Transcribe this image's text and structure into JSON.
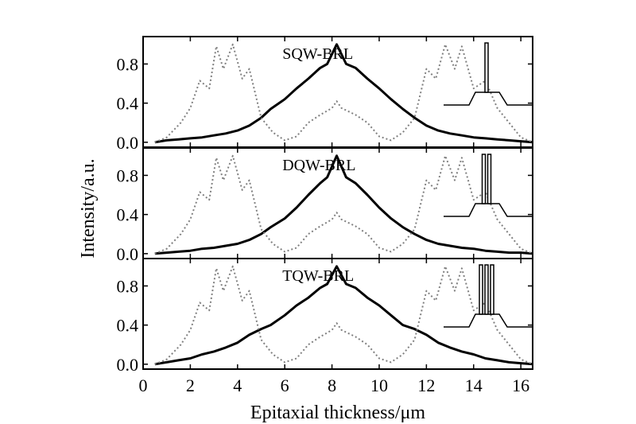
{
  "chart_data": {
    "type": "line",
    "xlabel": "Epitaxial thickness/μm",
    "ylabel": "Intensity/a.u.",
    "xlim": [
      0,
      16.5
    ],
    "ylim": [
      -0.05,
      1.08
    ],
    "x_ticks": [
      "0",
      "2",
      "4",
      "6",
      "8",
      "10",
      "12",
      "14",
      "16"
    ],
    "y_ticks": [
      "0.0",
      "0.4",
      "0.8"
    ],
    "colors": {
      "solid": "#000000",
      "dotted": "#808080",
      "frame": "#000000"
    },
    "panels": [
      {
        "label": "SQW-BRL",
        "wells": 1,
        "series": [
          {
            "style": "solid",
            "x": [
              0.5,
              1.0,
              1.5,
              2.0,
              2.5,
              3.0,
              3.5,
              4.0,
              4.5,
              5.0,
              5.4,
              6.0,
              6.5,
              7.0,
              7.5,
              7.8,
              8.2,
              8.6,
              9.0,
              9.5,
              10.0,
              10.5,
              11.0,
              11.5,
              12.0,
              12.5,
              13.0,
              13.5,
              14.0,
              14.5,
              15.0,
              15.5,
              16.0,
              16.5
            ],
            "y": [
              0.0,
              0.02,
              0.03,
              0.04,
              0.05,
              0.07,
              0.09,
              0.12,
              0.17,
              0.25,
              0.34,
              0.44,
              0.55,
              0.65,
              0.76,
              0.8,
              1.0,
              0.8,
              0.76,
              0.65,
              0.55,
              0.44,
              0.34,
              0.25,
              0.17,
              0.12,
              0.09,
              0.07,
              0.05,
              0.04,
              0.03,
              0.02,
              0.01,
              0.0
            ]
          },
          {
            "style": "dotted",
            "x": [
              0.5,
              1.0,
              1.6,
              2.0,
              2.4,
              2.8,
              3.1,
              3.4,
              3.8,
              4.2,
              4.5,
              5.0,
              5.5,
              6.0,
              6.5,
              7.0,
              7.5,
              8.0,
              8.2,
              8.4,
              9.0,
              9.5,
              10.0,
              10.5,
              11.0,
              11.5,
              12.0,
              12.4,
              12.8,
              13.2,
              13.5,
              14.0,
              14.5,
              15.0,
              15.5,
              16.0,
              16.5
            ],
            "y": [
              0.0,
              0.05,
              0.2,
              0.35,
              0.63,
              0.55,
              0.98,
              0.75,
              1.0,
              0.65,
              0.75,
              0.25,
              0.1,
              0.02,
              0.06,
              0.2,
              0.28,
              0.35,
              0.42,
              0.35,
              0.28,
              0.2,
              0.06,
              0.02,
              0.1,
              0.25,
              0.75,
              0.65,
              1.0,
              0.75,
              0.98,
              0.55,
              0.63,
              0.35,
              0.2,
              0.05,
              0.0
            ]
          }
        ]
      },
      {
        "label": "DQW-BRL",
        "wells": 2,
        "series": [
          {
            "style": "solid",
            "x": [
              0.5,
              1.0,
              1.5,
              2.0,
              2.5,
              3.0,
              3.5,
              4.0,
              4.5,
              5.0,
              5.4,
              6.0,
              6.5,
              7.0,
              7.5,
              7.8,
              8.2,
              8.6,
              9.0,
              9.5,
              10.0,
              10.5,
              11.0,
              11.5,
              12.0,
              12.5,
              13.0,
              13.5,
              14.0,
              14.5,
              15.0,
              15.5,
              16.0,
              16.5
            ],
            "y": [
              0.0,
              0.01,
              0.02,
              0.03,
              0.05,
              0.06,
              0.08,
              0.1,
              0.14,
              0.2,
              0.27,
              0.36,
              0.47,
              0.6,
              0.72,
              0.78,
              1.0,
              0.78,
              0.72,
              0.6,
              0.47,
              0.36,
              0.27,
              0.2,
              0.14,
              0.1,
              0.08,
              0.06,
              0.05,
              0.03,
              0.02,
              0.01,
              0.01,
              0.0
            ]
          },
          {
            "style": "dotted",
            "x": [
              0.5,
              1.0,
              1.6,
              2.0,
              2.4,
              2.8,
              3.1,
              3.4,
              3.8,
              4.2,
              4.5,
              5.0,
              5.5,
              6.0,
              6.5,
              7.0,
              7.5,
              8.0,
              8.2,
              8.4,
              9.0,
              9.5,
              10.0,
              10.5,
              11.0,
              11.5,
              12.0,
              12.4,
              12.8,
              13.2,
              13.5,
              14.0,
              14.5,
              15.0,
              15.5,
              16.0,
              16.5
            ],
            "y": [
              0.0,
              0.05,
              0.2,
              0.35,
              0.63,
              0.55,
              0.98,
              0.75,
              1.0,
              0.65,
              0.75,
              0.25,
              0.1,
              0.02,
              0.06,
              0.2,
              0.28,
              0.35,
              0.42,
              0.35,
              0.28,
              0.2,
              0.06,
              0.02,
              0.1,
              0.25,
              0.75,
              0.65,
              1.0,
              0.75,
              0.98,
              0.55,
              0.63,
              0.35,
              0.2,
              0.05,
              0.0
            ]
          }
        ]
      },
      {
        "label": "TQW-BRL",
        "wells": 3,
        "series": [
          {
            "style": "solid",
            "x": [
              0.5,
              1.0,
              1.5,
              2.0,
              2.5,
              3.0,
              3.5,
              4.0,
              4.5,
              5.0,
              5.4,
              6.0,
              6.5,
              7.0,
              7.5,
              7.8,
              8.2,
              8.6,
              9.0,
              9.5,
              10.0,
              10.5,
              11.0,
              11.5,
              12.0,
              12.5,
              13.0,
              13.5,
              14.0,
              14.5,
              15.0,
              15.5,
              16.0,
              16.5
            ],
            "y": [
              0.0,
              0.02,
              0.04,
              0.06,
              0.1,
              0.13,
              0.17,
              0.22,
              0.3,
              0.36,
              0.4,
              0.5,
              0.6,
              0.68,
              0.78,
              0.82,
              1.0,
              0.82,
              0.78,
              0.68,
              0.6,
              0.5,
              0.4,
              0.36,
              0.3,
              0.22,
              0.17,
              0.13,
              0.1,
              0.06,
              0.04,
              0.02,
              0.01,
              0.0
            ]
          },
          {
            "style": "dotted",
            "x": [
              0.5,
              1.0,
              1.6,
              2.0,
              2.4,
              2.8,
              3.1,
              3.4,
              3.8,
              4.2,
              4.5,
              5.0,
              5.5,
              6.0,
              6.5,
              7.0,
              7.5,
              8.0,
              8.2,
              8.4,
              9.0,
              9.5,
              10.0,
              10.5,
              11.0,
              11.5,
              12.0,
              12.4,
              12.8,
              13.2,
              13.5,
              14.0,
              14.5,
              15.0,
              15.5,
              16.0,
              16.5
            ],
            "y": [
              0.0,
              0.05,
              0.2,
              0.35,
              0.63,
              0.55,
              0.98,
              0.75,
              1.0,
              0.65,
              0.75,
              0.25,
              0.1,
              0.02,
              0.06,
              0.2,
              0.28,
              0.35,
              0.42,
              0.35,
              0.28,
              0.2,
              0.06,
              0.02,
              0.1,
              0.25,
              0.75,
              0.65,
              1.0,
              0.75,
              0.98,
              0.55,
              0.63,
              0.35,
              0.2,
              0.05,
              0.0
            ]
          }
        ]
      }
    ]
  }
}
